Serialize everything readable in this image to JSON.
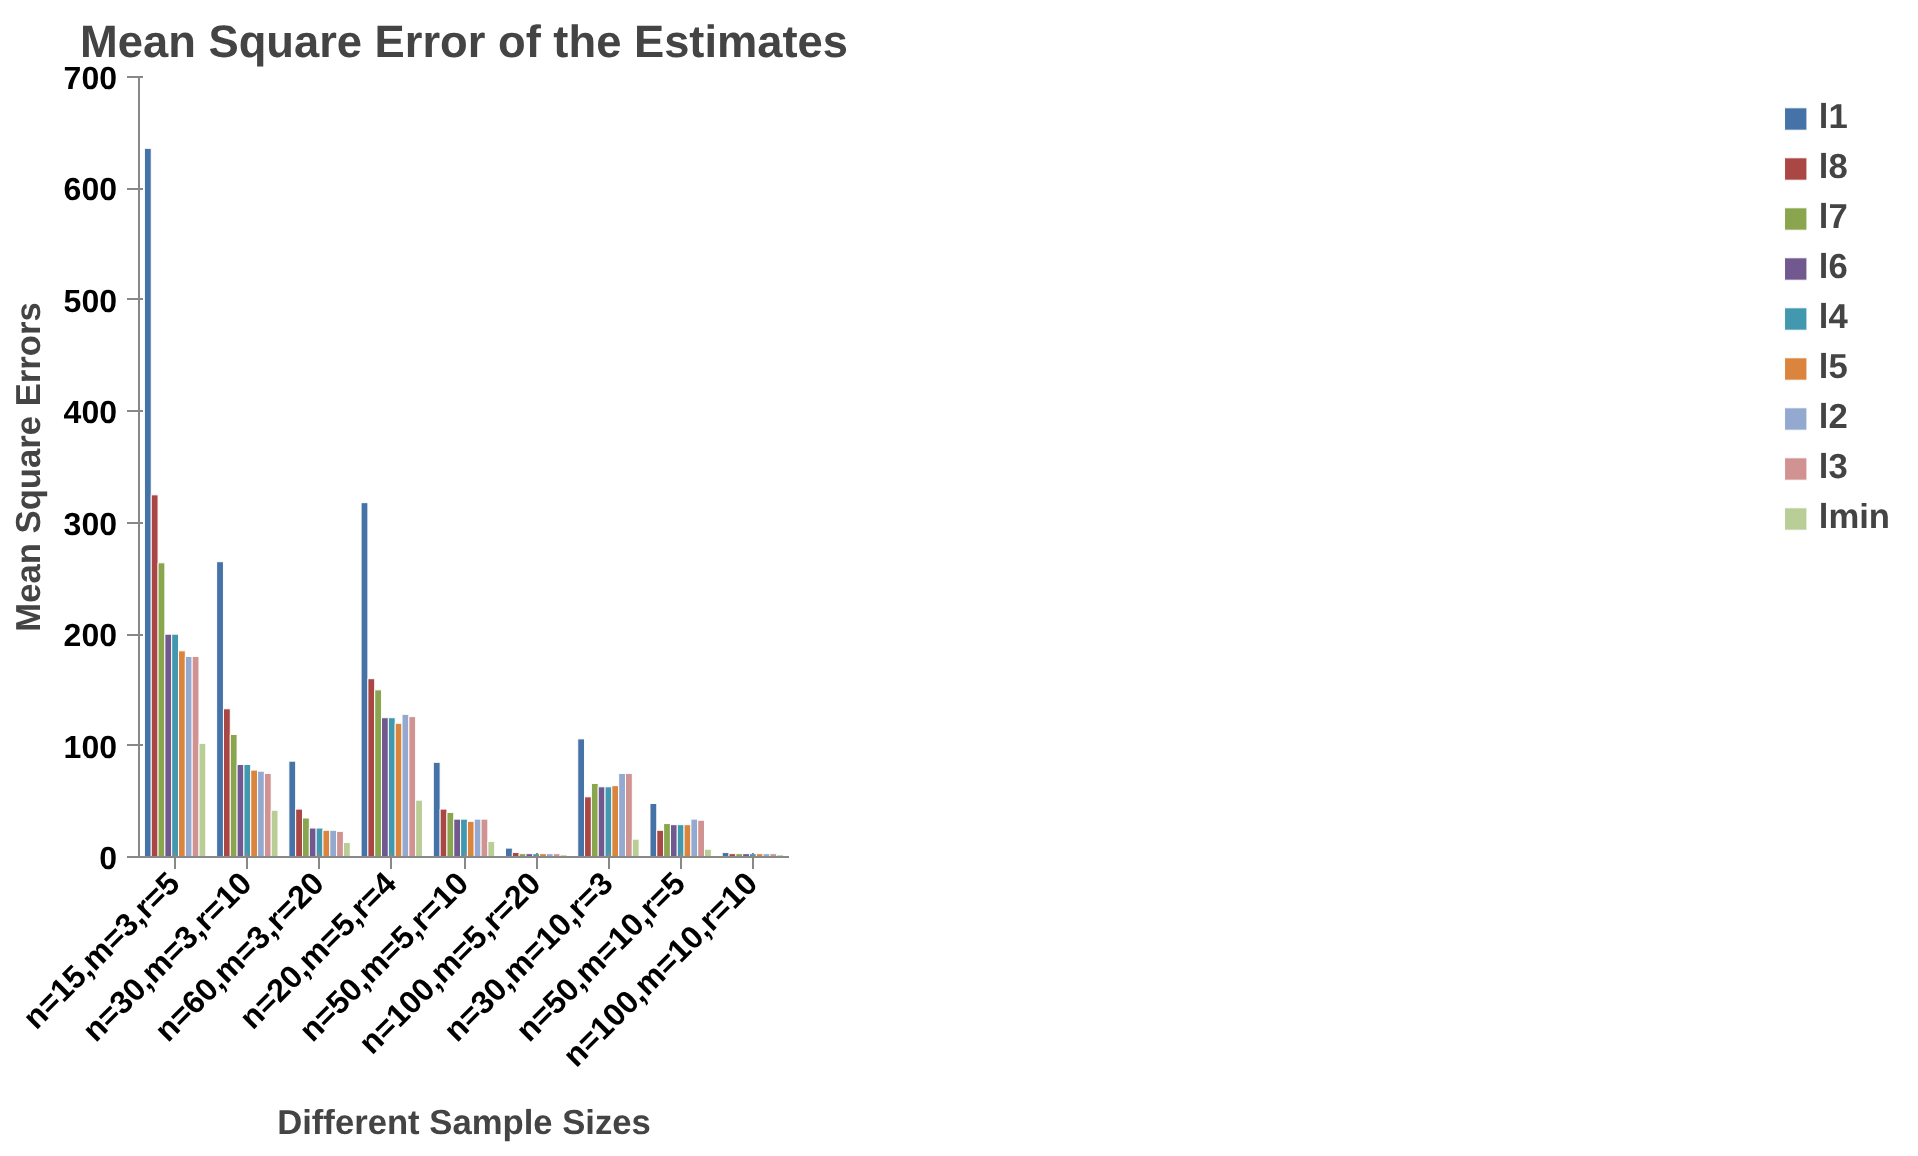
{
  "chart_data": {
    "type": "bar",
    "title": "Mean Square Error of the Estimates",
    "xlabel": "Different Sample Sizes",
    "ylabel": "Mean Square Errors",
    "categories": [
      "n=15,m=3,r=5",
      "n=30,m=3,r=10",
      "n=60,m=3,r=20",
      "n=20,m=5,r=4",
      "n=50,m=5,r=10",
      "n=100,m=5,r=20",
      "n=30,m=10,r=3",
      "n=50,m=10,r=5",
      "n=100,m=10,r=10"
    ],
    "ylim": [
      0,
      700
    ],
    "yticks": [
      0,
      100,
      200,
      300,
      400,
      500,
      600,
      700
    ],
    "grid": false,
    "legend": "right",
    "series": [
      {
        "name": "l1",
        "color": "#4572a7",
        "values": [
          636,
          265,
          86,
          318,
          85,
          8,
          106,
          48,
          4
        ]
      },
      {
        "name": "l8",
        "color": "#aa4643",
        "values": [
          325,
          133,
          43,
          160,
          43,
          4,
          54,
          24,
          3
        ]
      },
      {
        "name": "l7",
        "color": "#89a54e",
        "values": [
          264,
          110,
          35,
          150,
          40,
          3,
          66,
          30,
          3
        ]
      },
      {
        "name": "l6",
        "color": "#71588f",
        "values": [
          200,
          83,
          26,
          125,
          34,
          3,
          63,
          29,
          3
        ]
      },
      {
        "name": "l4",
        "color": "#4198af",
        "values": [
          200,
          83,
          26,
          125,
          34,
          3,
          63,
          29,
          3
        ]
      },
      {
        "name": "l5",
        "color": "#db843d",
        "values": [
          185,
          78,
          24,
          120,
          32,
          3,
          64,
          29,
          3
        ]
      },
      {
        "name": "l2",
        "color": "#93a9cf",
        "values": [
          180,
          77,
          24,
          128,
          34,
          3,
          75,
          34,
          3
        ]
      },
      {
        "name": "l3",
        "color": "#d19392",
        "values": [
          180,
          75,
          23,
          126,
          34,
          3,
          75,
          33,
          3
        ]
      },
      {
        "name": "lmin",
        "color": "#b9cd96",
        "values": [
          102,
          42,
          13,
          51,
          14,
          2,
          16,
          7,
          2
        ]
      }
    ]
  }
}
